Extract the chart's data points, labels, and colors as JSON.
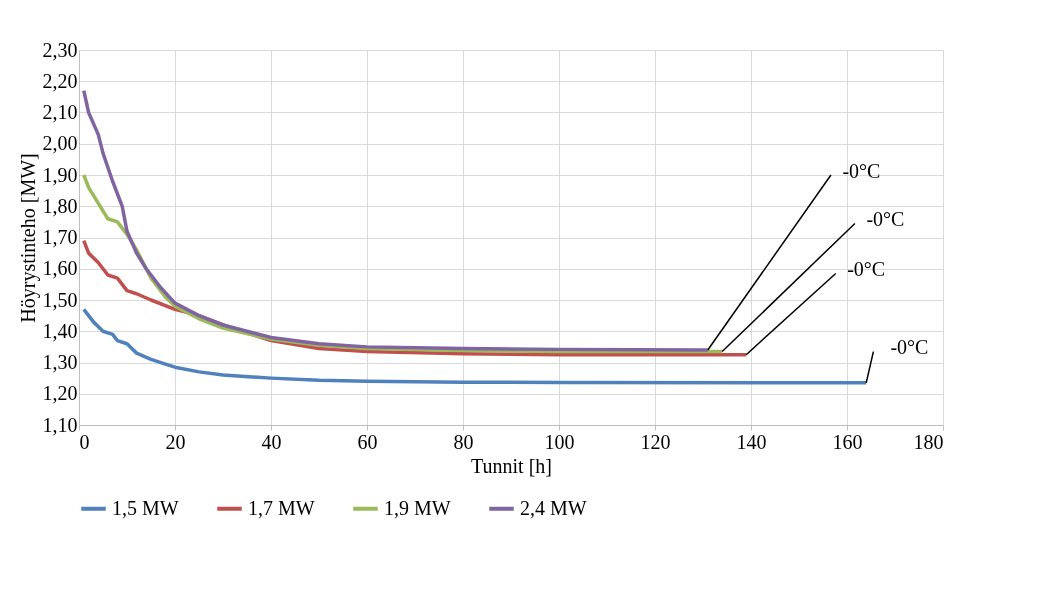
{
  "chart_data": {
    "type": "line",
    "xlabel": "Tunnit [h]",
    "ylabel": "Höyrystinteho [MW]",
    "xlim": [
      0,
      180
    ],
    "xticks": [
      0,
      20,
      40,
      60,
      80,
      100,
      120,
      140,
      160,
      180
    ],
    "ylim": [
      1.1,
      2.3
    ],
    "yticks": [
      {
        "value": 1.1,
        "label": "1,10"
      },
      {
        "value": 1.2,
        "label": "1,20"
      },
      {
        "value": 1.3,
        "label": "1,30"
      },
      {
        "value": 1.4,
        "label": "1,40"
      },
      {
        "value": 1.5,
        "label": "1,50"
      },
      {
        "value": 1.6,
        "label": "1,60"
      },
      {
        "value": 1.7,
        "label": "1,70"
      },
      {
        "value": 1.8,
        "label": "1,80"
      },
      {
        "value": 1.9,
        "label": "1,90"
      },
      {
        "value": 2.0,
        "label": "2,00"
      },
      {
        "value": 2.1,
        "label": "2,10"
      },
      {
        "value": 2.2,
        "label": "2,20"
      },
      {
        "value": 2.3,
        "label": "2,30"
      }
    ],
    "grid": true,
    "legend": "bottom",
    "marker": "none",
    "line_style": "solid",
    "series": [
      {
        "name": "1,5 MW",
        "color": "#4f81bd",
        "x": [
          1,
          2,
          3,
          5,
          7,
          8,
          10,
          12,
          15,
          18,
          20,
          25,
          30,
          40,
          50,
          60,
          80,
          100,
          164
        ],
        "values": [
          1.47,
          1.45,
          1.43,
          1.4,
          1.39,
          1.37,
          1.36,
          1.33,
          1.31,
          1.295,
          1.285,
          1.27,
          1.26,
          1.25,
          1.243,
          1.24,
          1.237,
          1.236,
          1.235
        ]
      },
      {
        "name": "1,7 MW",
        "color": "#c0504d",
        "x": [
          1,
          2,
          4,
          6,
          8,
          10,
          12,
          15,
          20,
          25,
          30,
          40,
          50,
          60,
          80,
          100,
          139
        ],
        "values": [
          1.69,
          1.65,
          1.62,
          1.58,
          1.57,
          1.53,
          1.52,
          1.5,
          1.47,
          1.45,
          1.42,
          1.37,
          1.345,
          1.335,
          1.328,
          1.325,
          1.325
        ]
      },
      {
        "name": "1,9 MW",
        "color": "#9bbb59",
        "x": [
          1,
          2,
          4,
          6,
          8,
          10,
          12,
          15,
          18,
          20,
          25,
          30,
          40,
          50,
          60,
          80,
          100,
          134
        ],
        "values": [
          1.9,
          1.86,
          1.81,
          1.76,
          1.75,
          1.71,
          1.66,
          1.57,
          1.51,
          1.48,
          1.44,
          1.41,
          1.375,
          1.355,
          1.345,
          1.338,
          1.335,
          1.335
        ]
      },
      {
        "name": "2,4 MW",
        "color": "#8064a2",
        "x": [
          1,
          2,
          4,
          5,
          7,
          9,
          10,
          12,
          14,
          17,
          20,
          25,
          30,
          40,
          50,
          60,
          80,
          100,
          131
        ],
        "values": [
          2.17,
          2.1,
          2.03,
          1.97,
          1.88,
          1.8,
          1.72,
          1.65,
          1.6,
          1.54,
          1.49,
          1.45,
          1.42,
          1.38,
          1.36,
          1.35,
          1.345,
          1.342,
          1.34
        ]
      }
    ],
    "annotations": [
      {
        "text": "-0°C",
        "x": 131,
        "y": 1.34
      },
      {
        "text": "-0°C",
        "x": 134,
        "y": 1.335
      },
      {
        "text": "-0°C",
        "x": 139,
        "y": 1.325
      },
      {
        "text": "-0°C",
        "x": 164,
        "y": 1.235
      }
    ]
  }
}
